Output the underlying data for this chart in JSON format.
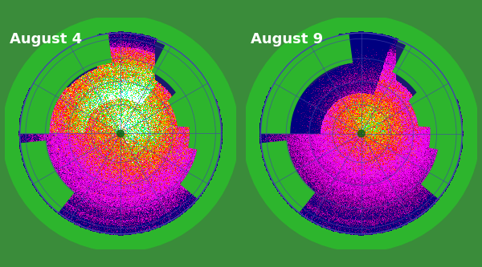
{
  "title_left": "August 4",
  "title_right": "August 9",
  "title_fontsize": 13,
  "title_color": "#ffffff",
  "title_bg_color": "#3a8c3a",
  "background_color": "#3a8c3a",
  "ocean_color": "#1a1a6e",
  "land_color": "#2db52d",
  "grid_color": "#4444aa",
  "figsize": [
    6.0,
    3.33
  ],
  "dpi": 100,
  "seed": 42,
  "ice_colormap": {
    "colors": [
      [
        0.0,
        "#000080"
      ],
      [
        0.15,
        "#800080"
      ],
      [
        0.3,
        "#cc00cc"
      ],
      [
        0.45,
        "#ff00ff"
      ],
      [
        0.55,
        "#cc44cc"
      ],
      [
        0.62,
        "#ff0000"
      ],
      [
        0.72,
        "#ff6600"
      ],
      [
        0.82,
        "#ffcc00"
      ],
      [
        0.9,
        "#00ff00"
      ],
      [
        0.96,
        "#00ffff"
      ],
      [
        1.0,
        "#ffffff"
      ]
    ]
  }
}
